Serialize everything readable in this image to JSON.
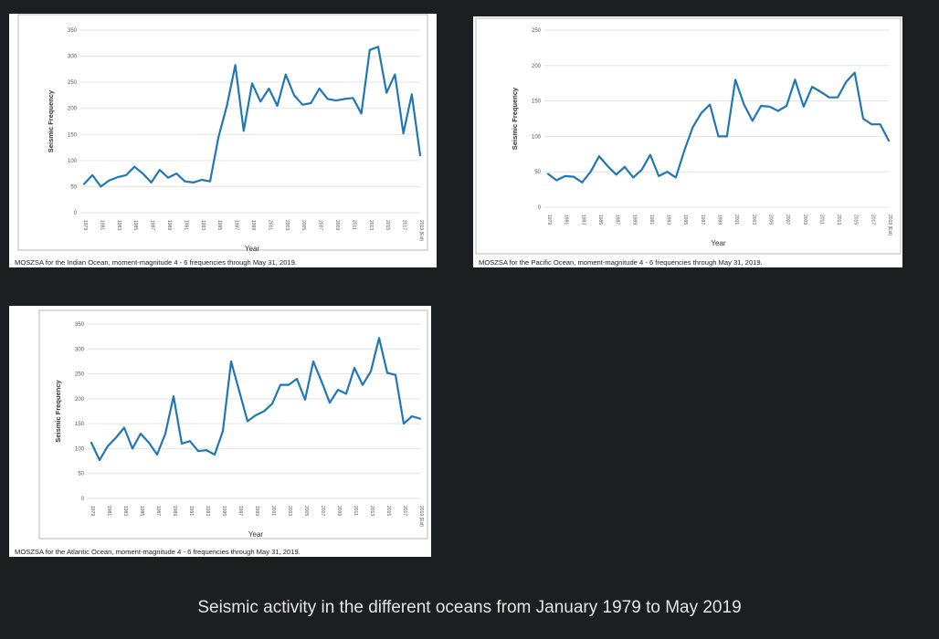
{
  "chart_data": [
    {
      "type": "line",
      "id": "indian",
      "caption": "MOSZSA for the Indian Ocean, moment-magnitude 4 - 6 frequencies through May 31, 2019.",
      "xlabel": "Year",
      "ylabel": "Seismic Frequency",
      "ylim": [
        0,
        350
      ],
      "yticks": [
        0,
        50,
        100,
        150,
        200,
        250,
        300,
        350
      ],
      "grid": true,
      "x": [
        1979,
        1980,
        1981,
        1982,
        1983,
        1984,
        1985,
        1986,
        1987,
        1988,
        1989,
        1990,
        1991,
        1992,
        1993,
        1994,
        1995,
        1996,
        1997,
        1998,
        1999,
        2000,
        2001,
        2002,
        2003,
        2004,
        2005,
        2006,
        2007,
        2008,
        2009,
        2010,
        2011,
        2012,
        2013,
        2014,
        2015,
        2016,
        2017,
        2018,
        2019
      ],
      "xticklabels": [
        "1979",
        "1981",
        "1983",
        "1985",
        "1987",
        "1989",
        "1991",
        "1993",
        "1995",
        "1997",
        "1999",
        "2001",
        "2003",
        "2005",
        "2007",
        "2009",
        "2011",
        "2013",
        "2015",
        "2017",
        "2019 (Est)"
      ],
      "series": [
        {
          "values": [
            55,
            72,
            50,
            62,
            68,
            72,
            88,
            75,
            58,
            82,
            67,
            75,
            60,
            58,
            63,
            60,
            145,
            205,
            283,
            157,
            248,
            213,
            238,
            205,
            265,
            225,
            207,
            210,
            238,
            218,
            215,
            218,
            220,
            190,
            312,
            318,
            230,
            265,
            152,
            227,
            110
          ]
        }
      ],
      "color": "#1f77b4"
    },
    {
      "type": "line",
      "id": "pacific",
      "caption": "MOSZSA for the Pacific Ocean, moment-magnitude 4 - 6 frequencies through May 31, 2019.",
      "xlabel": "Year",
      "ylabel": "Seismic Frequency",
      "ylim": [
        0,
        250
      ],
      "yticks": [
        0,
        50,
        100,
        150,
        200,
        250
      ],
      "grid": true,
      "x": [
        1979,
        1980,
        1981,
        1982,
        1983,
        1984,
        1985,
        1986,
        1987,
        1988,
        1989,
        1990,
        1991,
        1992,
        1993,
        1994,
        1995,
        1996,
        1997,
        1998,
        1999,
        2000,
        2001,
        2002,
        2003,
        2004,
        2005,
        2006,
        2007,
        2008,
        2009,
        2010,
        2011,
        2012,
        2013,
        2014,
        2015,
        2016,
        2017,
        2018,
        2019
      ],
      "xticklabels": [
        "1979",
        "1981",
        "1983",
        "1985",
        "1987",
        "1989",
        "1991",
        "1993",
        "1995",
        "1997",
        "1999",
        "2001",
        "2003",
        "2005",
        "2007",
        "2009",
        "2011",
        "2013",
        "2015",
        "2017",
        "2019 (Est)"
      ],
      "series": [
        {
          "values": [
            47,
            38,
            44,
            43,
            35,
            50,
            72,
            58,
            46,
            57,
            42,
            53,
            74,
            44,
            50,
            42,
            80,
            113,
            133,
            145,
            100,
            100,
            180,
            145,
            122,
            143,
            142,
            136,
            143,
            180,
            142,
            170,
            163,
            155,
            155,
            177,
            190,
            125,
            117,
            117,
            94
          ]
        }
      ],
      "color": "#1f77b4"
    },
    {
      "type": "line",
      "id": "atlantic",
      "caption": "MOSZSA for the Atlantic Ocean, moment-magnitude 4 - 6 frequencies through May 31, 2019.",
      "xlabel": "Year",
      "ylabel": "Seismic Frequency",
      "ylim": [
        0,
        350
      ],
      "yticks": [
        0,
        50,
        100,
        150,
        200,
        250,
        300,
        350
      ],
      "grid": true,
      "x": [
        1979,
        1980,
        1981,
        1982,
        1983,
        1984,
        1985,
        1986,
        1987,
        1988,
        1989,
        1990,
        1991,
        1992,
        1993,
        1994,
        1995,
        1996,
        1997,
        1998,
        1999,
        2000,
        2001,
        2002,
        2003,
        2004,
        2005,
        2006,
        2007,
        2008,
        2009,
        2010,
        2011,
        2012,
        2013,
        2014,
        2015,
        2016,
        2017,
        2018,
        2019
      ],
      "xticklabels": [
        "1979",
        "1981",
        "1983",
        "1985",
        "1987",
        "1989",
        "1991",
        "1993",
        "1995",
        "1997",
        "1999",
        "2001",
        "2003",
        "2005",
        "2007",
        "2009",
        "2011",
        "2013",
        "2015",
        "2017",
        "2019 (Est)"
      ],
      "series": [
        {
          "values": [
            112,
            77,
            105,
            122,
            142,
            100,
            130,
            112,
            88,
            130,
            205,
            110,
            115,
            95,
            97,
            88,
            135,
            275,
            215,
            155,
            167,
            175,
            190,
            228,
            228,
            240,
            198,
            275,
            235,
            192,
            218,
            210,
            262,
            228,
            255,
            322,
            252,
            248,
            150,
            165,
            160
          ]
        }
      ],
      "color": "#1f77b4"
    }
  ],
  "footer": {
    "caption": "Seismic activity in the different oceans from January 1979 to May 2019"
  }
}
